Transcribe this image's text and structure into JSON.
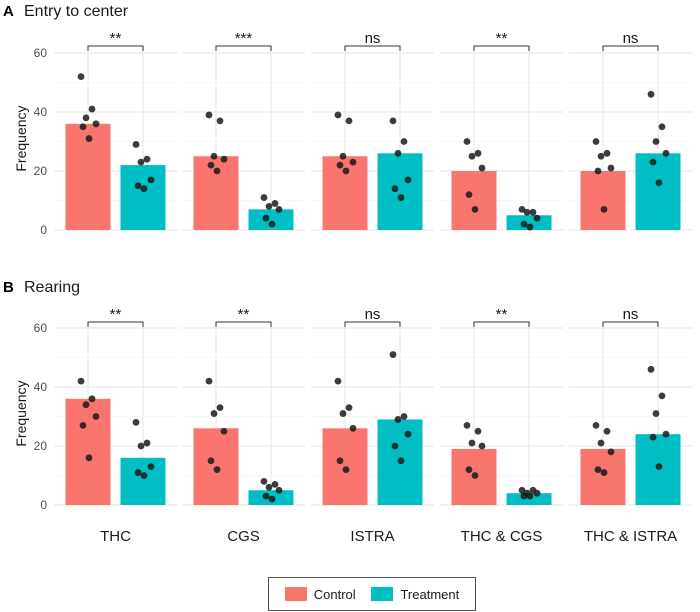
{
  "legend": {
    "control_label": "Control",
    "treatment_label": "Treatment",
    "control_color": "#F8766D",
    "treatment_color": "#00BFC4"
  },
  "chart_data": [
    {
      "type": "bar",
      "panel_tag": "A",
      "title": "Entry to center",
      "ylabel": "Frequency",
      "ylim": [
        0,
        62
      ],
      "yticks": [
        0,
        20,
        40,
        60
      ],
      "grid": true,
      "categories": [
        "THC",
        "CGS",
        "ISTRA",
        "THC & CGS",
        "THC & ISTRA"
      ],
      "series": [
        {
          "name": "Control",
          "color": "#F8766D",
          "values": [
            36,
            25,
            25,
            20,
            20
          ],
          "points": [
            [
              52,
              41,
              38,
              36,
              35,
              31
            ],
            [
              39,
              37,
              25,
              24,
              22,
              20
            ],
            [
              39,
              37,
              25,
              23,
              22,
              20
            ],
            [
              30,
              26,
              25,
              21,
              12,
              7
            ],
            [
              30,
              26,
              25,
              21,
              20,
              7
            ]
          ]
        },
        {
          "name": "Treatment",
          "color": "#00BFC4",
          "values": [
            22,
            7,
            26,
            5,
            26
          ],
          "points": [
            [
              29,
              24,
              23,
              17,
              15,
              14
            ],
            [
              11,
              9,
              8,
              7,
              4,
              2
            ],
            [
              37,
              30,
              26,
              17,
              14,
              11
            ],
            [
              7,
              6,
              6,
              4,
              2,
              1
            ],
            [
              46,
              35,
              30,
              26,
              23,
              16
            ]
          ]
        }
      ],
      "significance": [
        "**",
        "***",
        "ns",
        "**",
        "ns"
      ]
    },
    {
      "type": "bar",
      "panel_tag": "B",
      "title": "Rearing",
      "ylabel": "Frequency",
      "ylim": [
        0,
        62
      ],
      "yticks": [
        0,
        20,
        40,
        60
      ],
      "grid": true,
      "categories": [
        "THC",
        "CGS",
        "ISTRA",
        "THC & CGS",
        "THC & ISTRA"
      ],
      "series": [
        {
          "name": "Control",
          "color": "#F8766D",
          "values": [
            36,
            26,
            26,
            19,
            19
          ],
          "points": [
            [
              42,
              36,
              34,
              30,
              27,
              16
            ],
            [
              42,
              33,
              31,
              25,
              15,
              12
            ],
            [
              42,
              33,
              31,
              26,
              15,
              12
            ],
            [
              27,
              25,
              21,
              20,
              12,
              10
            ],
            [
              27,
              25,
              21,
              18,
              12,
              11
            ]
          ]
        },
        {
          "name": "Treatment",
          "color": "#00BFC4",
          "values": [
            16,
            5,
            29,
            4,
            24
          ],
          "points": [
            [
              28,
              21,
              20,
              13,
              11,
              10
            ],
            [
              8,
              7,
              6,
              5,
              3,
              2
            ],
            [
              51,
              30,
              29,
              24,
              20,
              15
            ],
            [
              5,
              5,
              4,
              4,
              3,
              3
            ],
            [
              46,
              37,
              31,
              24,
              23,
              13
            ]
          ]
        }
      ],
      "significance": [
        "**",
        "**",
        "ns",
        "**",
        "ns"
      ]
    }
  ]
}
